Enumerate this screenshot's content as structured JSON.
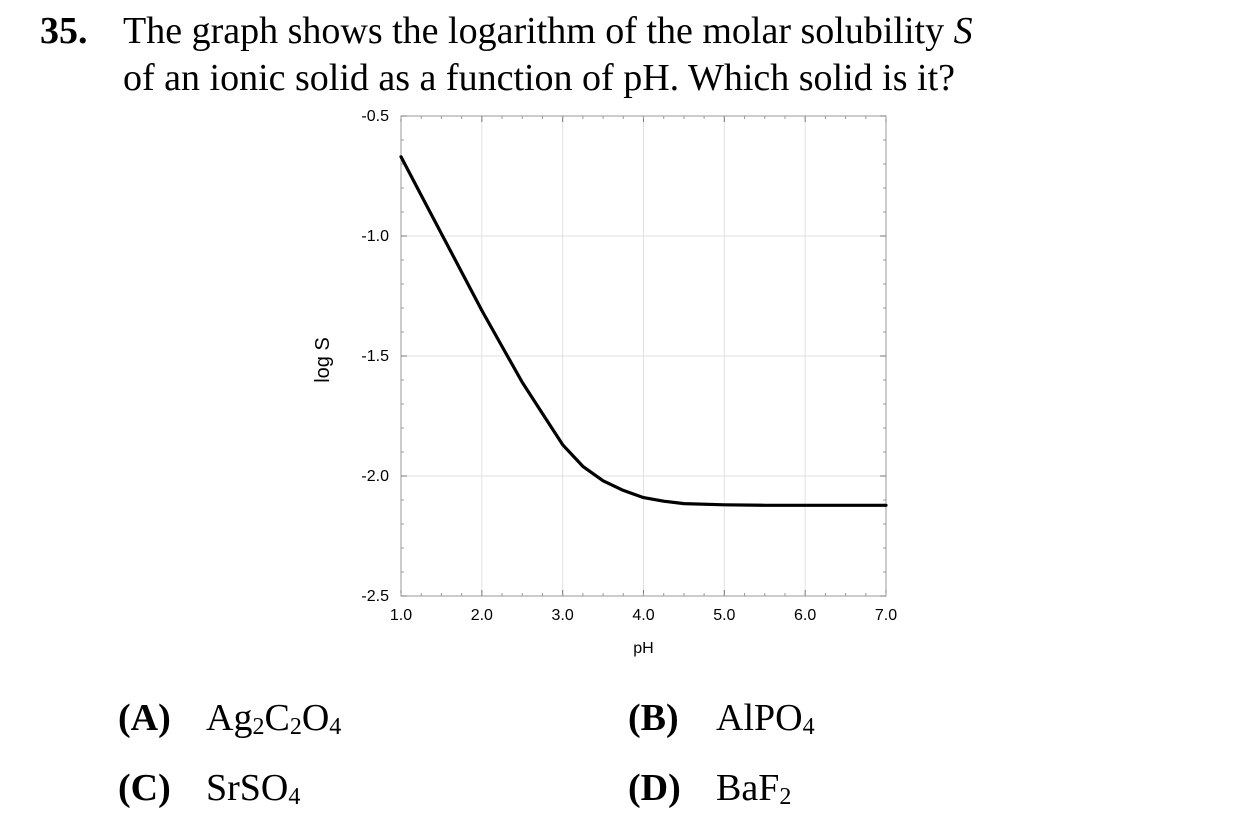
{
  "question": {
    "number": "35.",
    "line1_text": "The graph shows the logarithm of the molar solubility",
    "line1_symbol": "S",
    "line2_text": "of an ionic solid as a function of pH.  Which solid is it?"
  },
  "choices": [
    {
      "label": "(A)",
      "formula": [
        {
          "t": "Ag"
        },
        {
          "s": "2"
        },
        {
          "t": "C"
        },
        {
          "s": "2"
        },
        {
          "t": "O"
        },
        {
          "s": "4"
        }
      ]
    },
    {
      "label": "(B)",
      "formula": [
        {
          "t": "AlPO"
        },
        {
          "s": "4"
        }
      ]
    },
    {
      "label": "(C)",
      "formula": [
        {
          "t": "SrSO"
        },
        {
          "s": "4"
        }
      ]
    },
    {
      "label": "(D)",
      "formula": [
        {
          "t": "BaF"
        },
        {
          "s": "2"
        }
      ]
    }
  ],
  "chart_data": {
    "type": "line",
    "xlabel": "pH",
    "ylabel": "log S",
    "xlim": [
      1.0,
      7.0
    ],
    "ylim": [
      -2.5,
      -0.5
    ],
    "xticks": [
      "1.0",
      "2.0",
      "3.0",
      "4.0",
      "5.0",
      "6.0",
      "7.0"
    ],
    "yticks": [
      "-0.5",
      "-1.0",
      "-1.5",
      "-2.0",
      "-2.5"
    ],
    "grid": true,
    "line_color": "#000000",
    "series": [
      {
        "x": [
          1.0,
          1.25,
          1.5,
          1.75,
          2.0,
          2.25,
          2.5,
          2.75,
          3.0,
          3.25,
          3.5,
          3.75,
          4.0,
          4.25,
          4.5,
          5.0,
          5.5,
          6.0,
          6.5,
          7.0
        ],
        "values": [
          -0.67,
          -0.83,
          -0.99,
          -1.15,
          -1.31,
          -1.46,
          -1.61,
          -1.74,
          -1.87,
          -1.96,
          -2.02,
          -2.06,
          -2.09,
          -2.105,
          -2.115,
          -2.12,
          -2.122,
          -2.122,
          -2.122,
          -2.122
        ]
      }
    ]
  }
}
